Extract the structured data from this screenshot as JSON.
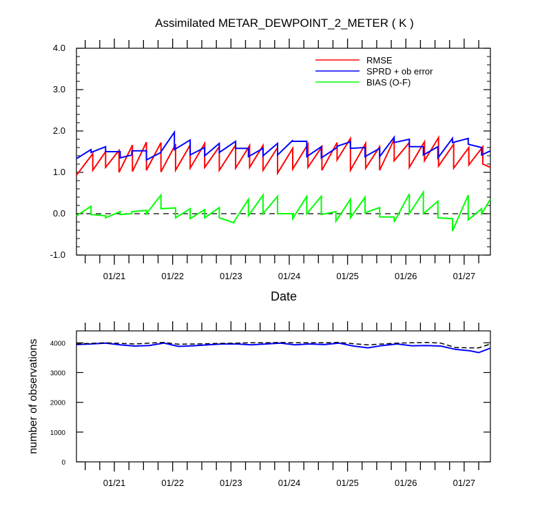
{
  "chart_data": [
    {
      "type": "line",
      "title": "Assimilated METAR_DEWPOINT_2_METER ( K )",
      "xlabel": "Date",
      "ylabel": "",
      "ylim": [
        -1.0,
        4.0
      ],
      "yticks": [
        -1.0,
        0.0,
        1.0,
        2.0,
        3.0,
        4.0
      ],
      "ytick_labels": [
        "-1.0",
        "0.0",
        "1.0",
        "2.0",
        "3.0",
        "4.0"
      ],
      "xlim": [
        20.35,
        27.45
      ],
      "xticks": [
        21,
        22,
        23,
        24,
        25,
        26,
        27
      ],
      "xtick_labels": [
        "01/21",
        "01/22",
        "01/23",
        "01/24",
        "01/25",
        "01/26",
        "01/27"
      ],
      "grid": false,
      "legend_position": "top-right",
      "reference_line": {
        "y": 0.0,
        "style": "dashed"
      },
      "series": [
        {
          "name": "RMSE",
          "color": "#ff0000",
          "points": [
            [
              20.35,
              0.93
            ],
            [
              20.63,
              1.45
            ],
            [
              20.63,
              1.05
            ],
            [
              20.85,
              1.5
            ],
            [
              20.85,
              1.12
            ],
            [
              21.08,
              1.53
            ],
            [
              21.08,
              1.0
            ],
            [
              21.31,
              1.66
            ],
            [
              21.31,
              1.02
            ],
            [
              21.55,
              1.73
            ],
            [
              21.55,
              1.05
            ],
            [
              21.8,
              1.72
            ],
            [
              21.8,
              1.01
            ],
            [
              22.05,
              1.68
            ],
            [
              22.05,
              1.05
            ],
            [
              22.3,
              1.66
            ],
            [
              22.3,
              1.1
            ],
            [
              22.55,
              1.7
            ],
            [
              22.55,
              1.12
            ],
            [
              22.8,
              1.62
            ],
            [
              22.8,
              1.05
            ],
            [
              23.08,
              1.66
            ],
            [
              23.08,
              1.1
            ],
            [
              23.32,
              1.65
            ],
            [
              23.32,
              1.12
            ],
            [
              23.55,
              1.65
            ],
            [
              23.55,
              1.05
            ],
            [
              23.8,
              1.6
            ],
            [
              23.8,
              0.98
            ],
            [
              24.06,
              1.58
            ],
            [
              24.06,
              1.08
            ],
            [
              24.32,
              1.68
            ],
            [
              24.32,
              1.12
            ],
            [
              24.56,
              1.62
            ],
            [
              24.56,
              1.05
            ],
            [
              24.82,
              1.72
            ],
            [
              24.82,
              1.3
            ],
            [
              25.05,
              1.82
            ],
            [
              25.05,
              1.05
            ],
            [
              25.31,
              1.7
            ],
            [
              25.31,
              1.1
            ],
            [
              25.55,
              1.62
            ],
            [
              25.55,
              1.05
            ],
            [
              25.8,
              1.8
            ],
            [
              25.8,
              1.28
            ],
            [
              26.06,
              1.72
            ],
            [
              26.06,
              1.12
            ],
            [
              26.32,
              1.74
            ],
            [
              26.32,
              1.28
            ],
            [
              26.56,
              1.84
            ],
            [
              26.56,
              1.15
            ],
            [
              26.82,
              1.68
            ],
            [
              26.82,
              1.1
            ],
            [
              27.08,
              1.6
            ],
            [
              27.08,
              1.18
            ],
            [
              27.32,
              1.62
            ],
            [
              27.32,
              1.2
            ],
            [
              27.45,
              1.12
            ]
          ]
        },
        {
          "name": "SPRD + ob error",
          "color": "#0000ff",
          "points": [
            [
              20.35,
              1.33
            ],
            [
              20.6,
              1.55
            ],
            [
              20.6,
              1.48
            ],
            [
              20.85,
              1.62
            ],
            [
              20.85,
              1.5
            ],
            [
              21.1,
              1.5
            ],
            [
              21.1,
              1.35
            ],
            [
              21.3,
              1.42
            ],
            [
              21.3,
              1.52
            ],
            [
              21.55,
              1.52
            ],
            [
              21.55,
              1.3
            ],
            [
              21.8,
              1.48
            ],
            [
              21.8,
              1.5
            ],
            [
              22.03,
              1.97
            ],
            [
              22.03,
              1.55
            ],
            [
              22.3,
              1.78
            ],
            [
              22.3,
              1.42
            ],
            [
              22.55,
              1.6
            ],
            [
              22.55,
              1.4
            ],
            [
              22.8,
              1.7
            ],
            [
              22.8,
              1.48
            ],
            [
              23.08,
              1.75
            ],
            [
              23.08,
              1.58
            ],
            [
              23.3,
              1.58
            ],
            [
              23.3,
              1.38
            ],
            [
              23.55,
              1.58
            ],
            [
              23.55,
              1.4
            ],
            [
              23.8,
              1.7
            ],
            [
              23.8,
              1.42
            ],
            [
              24.05,
              1.76
            ],
            [
              24.05,
              1.75
            ],
            [
              24.3,
              1.75
            ],
            [
              24.3,
              1.38
            ],
            [
              24.55,
              1.62
            ],
            [
              24.55,
              1.35
            ],
            [
              24.82,
              1.6
            ],
            [
              24.82,
              1.63
            ],
            [
              25.05,
              1.74
            ],
            [
              25.05,
              1.58
            ],
            [
              25.3,
              1.6
            ],
            [
              25.3,
              1.38
            ],
            [
              25.55,
              1.58
            ],
            [
              25.55,
              1.38
            ],
            [
              25.8,
              1.85
            ],
            [
              25.8,
              1.72
            ],
            [
              26.06,
              1.8
            ],
            [
              26.06,
              1.62
            ],
            [
              26.3,
              1.62
            ],
            [
              26.3,
              1.42
            ],
            [
              26.55,
              1.62
            ],
            [
              26.55,
              1.35
            ],
            [
              26.8,
              1.82
            ],
            [
              26.8,
              1.72
            ],
            [
              27.07,
              1.82
            ],
            [
              27.07,
              1.68
            ],
            [
              27.3,
              1.6
            ],
            [
              27.3,
              1.42
            ],
            [
              27.45,
              1.52
            ]
          ]
        },
        {
          "name": "BIAS (O-F)",
          "color": "#00ff00",
          "points": [
            [
              20.35,
              -0.05
            ],
            [
              20.6,
              0.18
            ],
            [
              20.6,
              -0.02
            ],
            [
              20.85,
              -0.05
            ],
            [
              20.85,
              -0.1
            ],
            [
              21.1,
              0.05
            ],
            [
              21.1,
              -0.02
            ],
            [
              21.3,
              0.0
            ],
            [
              21.3,
              0.05
            ],
            [
              21.55,
              0.08
            ],
            [
              21.55,
              0.0
            ],
            [
              21.8,
              0.45
            ],
            [
              21.8,
              0.12
            ],
            [
              22.05,
              0.14
            ],
            [
              22.05,
              -0.1
            ],
            [
              22.3,
              0.12
            ],
            [
              22.3,
              -0.12
            ],
            [
              22.55,
              0.1
            ],
            [
              22.55,
              -0.1
            ],
            [
              22.8,
              0.15
            ],
            [
              22.8,
              -0.1
            ],
            [
              23.05,
              -0.22
            ],
            [
              23.05,
              -0.2
            ],
            [
              23.3,
              0.35
            ],
            [
              23.3,
              -0.05
            ],
            [
              23.55,
              0.45
            ],
            [
              23.55,
              0.0
            ],
            [
              23.8,
              0.42
            ],
            [
              23.8,
              0.0
            ],
            [
              24.06,
              0.0
            ],
            [
              24.06,
              -0.12
            ],
            [
              24.3,
              0.42
            ],
            [
              24.3,
              0.0
            ],
            [
              24.55,
              0.42
            ],
            [
              24.55,
              -0.02
            ],
            [
              24.8,
              0.05
            ],
            [
              24.8,
              -0.18
            ],
            [
              25.05,
              0.35
            ],
            [
              25.05,
              -0.1
            ],
            [
              25.3,
              0.4
            ],
            [
              25.3,
              0.02
            ],
            [
              25.55,
              0.15
            ],
            [
              25.55,
              -0.08
            ],
            [
              25.8,
              -0.08
            ],
            [
              25.8,
              -0.2
            ],
            [
              26.06,
              0.48
            ],
            [
              26.06,
              0.0
            ],
            [
              26.3,
              0.52
            ],
            [
              26.3,
              0.0
            ],
            [
              26.55,
              0.3
            ],
            [
              26.55,
              -0.1
            ],
            [
              26.8,
              -0.12
            ],
            [
              26.8,
              -0.42
            ],
            [
              27.07,
              0.45
            ],
            [
              27.07,
              -0.15
            ],
            [
              27.3,
              0.12
            ],
            [
              27.3,
              0.0
            ],
            [
              27.45,
              0.35
            ]
          ]
        }
      ]
    },
    {
      "type": "line",
      "title": "",
      "xlabel": "",
      "ylabel": "number of observations",
      "ylim": [
        0,
        4400
      ],
      "yticks": [
        0,
        1000,
        2000,
        3000,
        4000
      ],
      "ytick_labels": [
        "0",
        "1000",
        "2000",
        "3000",
        "4000"
      ],
      "xlim": [
        20.35,
        27.45
      ],
      "xticks": [
        21,
        22,
        23,
        24,
        25,
        26,
        27
      ],
      "xtick_labels": [
        "01/21",
        "01/22",
        "01/23",
        "01/24",
        "01/25",
        "01/26",
        "01/27"
      ],
      "grid": false,
      "series": [
        {
          "color": "#0000ff",
          "style": "solid",
          "points": [
            [
              20.35,
              3940
            ],
            [
              20.6,
              3960
            ],
            [
              20.85,
              3990
            ],
            [
              21.1,
              3930
            ],
            [
              21.35,
              3890
            ],
            [
              21.6,
              3910
            ],
            [
              21.85,
              3990
            ],
            [
              22.1,
              3880
            ],
            [
              22.35,
              3900
            ],
            [
              22.6,
              3930
            ],
            [
              22.85,
              3960
            ],
            [
              23.1,
              3960
            ],
            [
              23.35,
              3930
            ],
            [
              23.6,
              3960
            ],
            [
              23.85,
              3990
            ],
            [
              24.1,
              3930
            ],
            [
              24.35,
              3960
            ],
            [
              24.6,
              3940
            ],
            [
              24.85,
              3990
            ],
            [
              25.1,
              3890
            ],
            [
              25.35,
              3830
            ],
            [
              25.6,
              3910
            ],
            [
              25.85,
              3960
            ],
            [
              26.1,
              3900
            ],
            [
              26.35,
              3910
            ],
            [
              26.6,
              3890
            ],
            [
              26.85,
              3780
            ],
            [
              27.1,
              3730
            ],
            [
              27.25,
              3670
            ],
            [
              27.45,
              3820
            ]
          ]
        },
        {
          "color": "#000000",
          "style": "dashed",
          "points": [
            [
              20.35,
              3960
            ],
            [
              20.6,
              3980
            ],
            [
              20.85,
              4000
            ],
            [
              21.1,
              3980
            ],
            [
              21.35,
              3960
            ],
            [
              21.6,
              3990
            ],
            [
              21.85,
              4010
            ],
            [
              22.1,
              3950
            ],
            [
              22.35,
              3960
            ],
            [
              22.6,
              3970
            ],
            [
              22.85,
              3980
            ],
            [
              23.1,
              3990
            ],
            [
              23.35,
              4000
            ],
            [
              23.6,
              4000
            ],
            [
              23.85,
              4010
            ],
            [
              24.1,
              4000
            ],
            [
              24.35,
              4000
            ],
            [
              24.6,
              4000
            ],
            [
              24.85,
              4010
            ],
            [
              25.1,
              3970
            ],
            [
              25.35,
              3930
            ],
            [
              25.6,
              3960
            ],
            [
              25.85,
              3990
            ],
            [
              26.1,
              4000
            ],
            [
              26.35,
              4010
            ],
            [
              26.6,
              3990
            ],
            [
              26.85,
              3840
            ],
            [
              27.1,
              3830
            ],
            [
              27.25,
              3830
            ],
            [
              27.45,
              3960
            ]
          ]
        }
      ]
    }
  ]
}
